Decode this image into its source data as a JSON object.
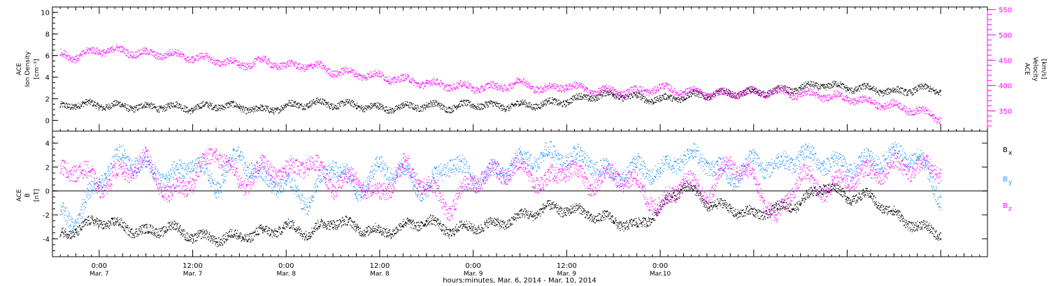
{
  "chart_data": [
    {
      "type": "scatter",
      "ylabel_lines": [
        "ACE",
        "Ion Density",
        "[cm⁻³]"
      ],
      "ylim": [
        -1,
        10.5
      ],
      "y_ticks": [
        "0",
        "2",
        "4",
        "6",
        "8",
        "10"
      ],
      "y2label_lines": [
        "ACE",
        "Velocity",
        "[km/s]"
      ],
      "y2lim": [
        310,
        555
      ],
      "y2_ticks": [
        "350",
        "400",
        "450",
        "500",
        "550"
      ],
      "y2_color": "#ff00ff",
      "series": [
        {
          "color": "#000000",
          "axis": "left",
          "x": [
            1,
            3,
            6,
            9,
            12,
            15,
            18,
            21,
            24,
            27,
            30,
            33,
            36,
            39,
            42,
            45,
            48,
            51,
            54,
            57,
            60,
            63,
            66,
            69,
            72,
            75,
            78,
            81,
            84,
            87,
            90,
            93,
            96,
            99,
            102,
            105,
            108,
            111,
            114
          ],
          "y": [
            1.2,
            1.5,
            1.4,
            1.3,
            1.2,
            1.3,
            1.1,
            1.4,
            1.2,
            0.9,
            1.3,
            1.6,
            1.5,
            1.4,
            1.1,
            1.2,
            1.4,
            1.2,
            1.5,
            1.3,
            1.4,
            1.5,
            1.8,
            2.2,
            2.4,
            2.1,
            1.9,
            2.2,
            2.4,
            2.5,
            2.6,
            2.7,
            3.0,
            3.3,
            3.0,
            2.9,
            2.6,
            2.9,
            2.8
          ]
        },
        {
          "color": "#ff00ff",
          "axis": "right",
          "x": [
            1,
            3,
            6,
            9,
            12,
            15,
            18,
            21,
            24,
            27,
            30,
            33,
            36,
            39,
            42,
            45,
            48,
            51,
            54,
            57,
            60,
            63,
            66,
            69,
            72,
            75,
            78,
            81,
            84,
            87,
            90,
            93,
            96,
            99,
            102,
            105,
            108,
            111,
            114
          ],
          "y": [
            460,
            457,
            470,
            468,
            462,
            462,
            455,
            450,
            440,
            448,
            438,
            440,
            428,
            423,
            418,
            411,
            404,
            400,
            396,
            396,
            406,
            392,
            400,
            390,
            388,
            388,
            395,
            388,
            383,
            384,
            386,
            387,
            383,
            380,
            375,
            366,
            360,
            350,
            335
          ]
        }
      ]
    },
    {
      "type": "scatter",
      "ylabel_lines": [
        "ACE",
        "B",
        "[nT]"
      ],
      "ylim": [
        -5.5,
        5
      ],
      "y_ticks": [
        "-4",
        "-2",
        "0",
        "2",
        "4"
      ],
      "legend": [
        {
          "label": "B",
          "sub": "x",
          "color": "#000000"
        },
        {
          "label": "B",
          "sub": "y",
          "color": "#1e90ff"
        },
        {
          "label": "B",
          "sub": "z",
          "color": "#ff00ff"
        }
      ],
      "series": [
        {
          "color": "#000000",
          "x": [
            1,
            3,
            6,
            9,
            12,
            15,
            18,
            21,
            24,
            27,
            30,
            33,
            36,
            39,
            42,
            45,
            48,
            51,
            54,
            57,
            60,
            63,
            66,
            69,
            72,
            75,
            78,
            81,
            84,
            87,
            90,
            93,
            96,
            99,
            102,
            105,
            108,
            111,
            114
          ],
          "y": [
            -3.8,
            -3.2,
            -2.5,
            -3.0,
            -3.5,
            -3.0,
            -3.8,
            -4.0,
            -3.8,
            -3.5,
            -3.0,
            -3.5,
            -2.5,
            -3.0,
            -3.5,
            -3.0,
            -2.5,
            -3.3,
            -3.0,
            -2.8,
            -2.2,
            -1.5,
            -1.5,
            -2.0,
            -2.5,
            -3.0,
            -1.5,
            0.5,
            -1.0,
            -1.5,
            -2.0,
            -1.5,
            -1.0,
            0.5,
            -0.5,
            -0.5,
            -2.0,
            -3.0,
            -3.5
          ]
        },
        {
          "color": "#1e90ff",
          "x": [
            1,
            3,
            6,
            9,
            12,
            15,
            18,
            21,
            24,
            27,
            30,
            33,
            36,
            39,
            42,
            45,
            48,
            51,
            54,
            57,
            60,
            63,
            66,
            69,
            72,
            75,
            78,
            81,
            84,
            87,
            90,
            93,
            96,
            99,
            102,
            105,
            108,
            111,
            114
          ],
          "y": [
            -2.0,
            -2.5,
            1.0,
            3.0,
            2.0,
            1.0,
            2.5,
            0.5,
            3.0,
            1.0,
            0.5,
            -1.0,
            2.5,
            0.0,
            2.0,
            1.5,
            0.0,
            2.5,
            1.0,
            1.5,
            2.5,
            3.0,
            2.8,
            2.5,
            1.0,
            2.0,
            1.5,
            3.0,
            2.5,
            1.0,
            2.5,
            2.0,
            3.0,
            2.5,
            2.0,
            2.5,
            3.0,
            2.8,
            -0.5
          ]
        },
        {
          "color": "#ff00ff",
          "x": [
            1,
            3,
            6,
            9,
            12,
            15,
            18,
            21,
            24,
            27,
            30,
            33,
            36,
            39,
            42,
            45,
            48,
            51,
            54,
            57,
            60,
            63,
            66,
            69,
            72,
            75,
            78,
            81,
            84,
            87,
            90,
            93,
            96,
            99,
            102,
            105,
            108,
            111,
            114
          ],
          "y": [
            1.5,
            2.0,
            0.5,
            1.5,
            2.5,
            -0.5,
            1.0,
            3.5,
            0.5,
            2.0,
            1.5,
            2.5,
            0.5,
            1.0,
            -0.5,
            2.0,
            0.5,
            -1.5,
            1.0,
            1.5,
            2.0,
            0.5,
            2.0,
            0.5,
            1.5,
            0.5,
            -1.5,
            1.0,
            -0.5,
            2.5,
            1.0,
            -2.5,
            1.5,
            0.0,
            1.0,
            1.5,
            2.0,
            2.0,
            1.8
          ]
        }
      ]
    }
  ],
  "x_axis": {
    "xlim": [
      0,
      120
    ],
    "ticks": [
      {
        "x": 6,
        "line1": "0:00",
        "line2": "Mar. 7"
      },
      {
        "x": 18,
        "line1": "12:00",
        "line2": "Mar. 7"
      },
      {
        "x": 30,
        "line1": "0:00",
        "line2": "Mar. 8"
      },
      {
        "x": 42,
        "line1": "12:00",
        "line2": "Mar. 8"
      },
      {
        "x": 54,
        "line1": "0:00",
        "line2": "Mar. 9"
      },
      {
        "x": 66,
        "line1": "12:00",
        "line2": "Mar. 9"
      },
      {
        "x": 78,
        "line1": "0:00",
        "line2": "Mar.10"
      }
    ],
    "xlabel": "hours:minutes, Mar.  6, 2014 - Mar. 10, 2014"
  }
}
